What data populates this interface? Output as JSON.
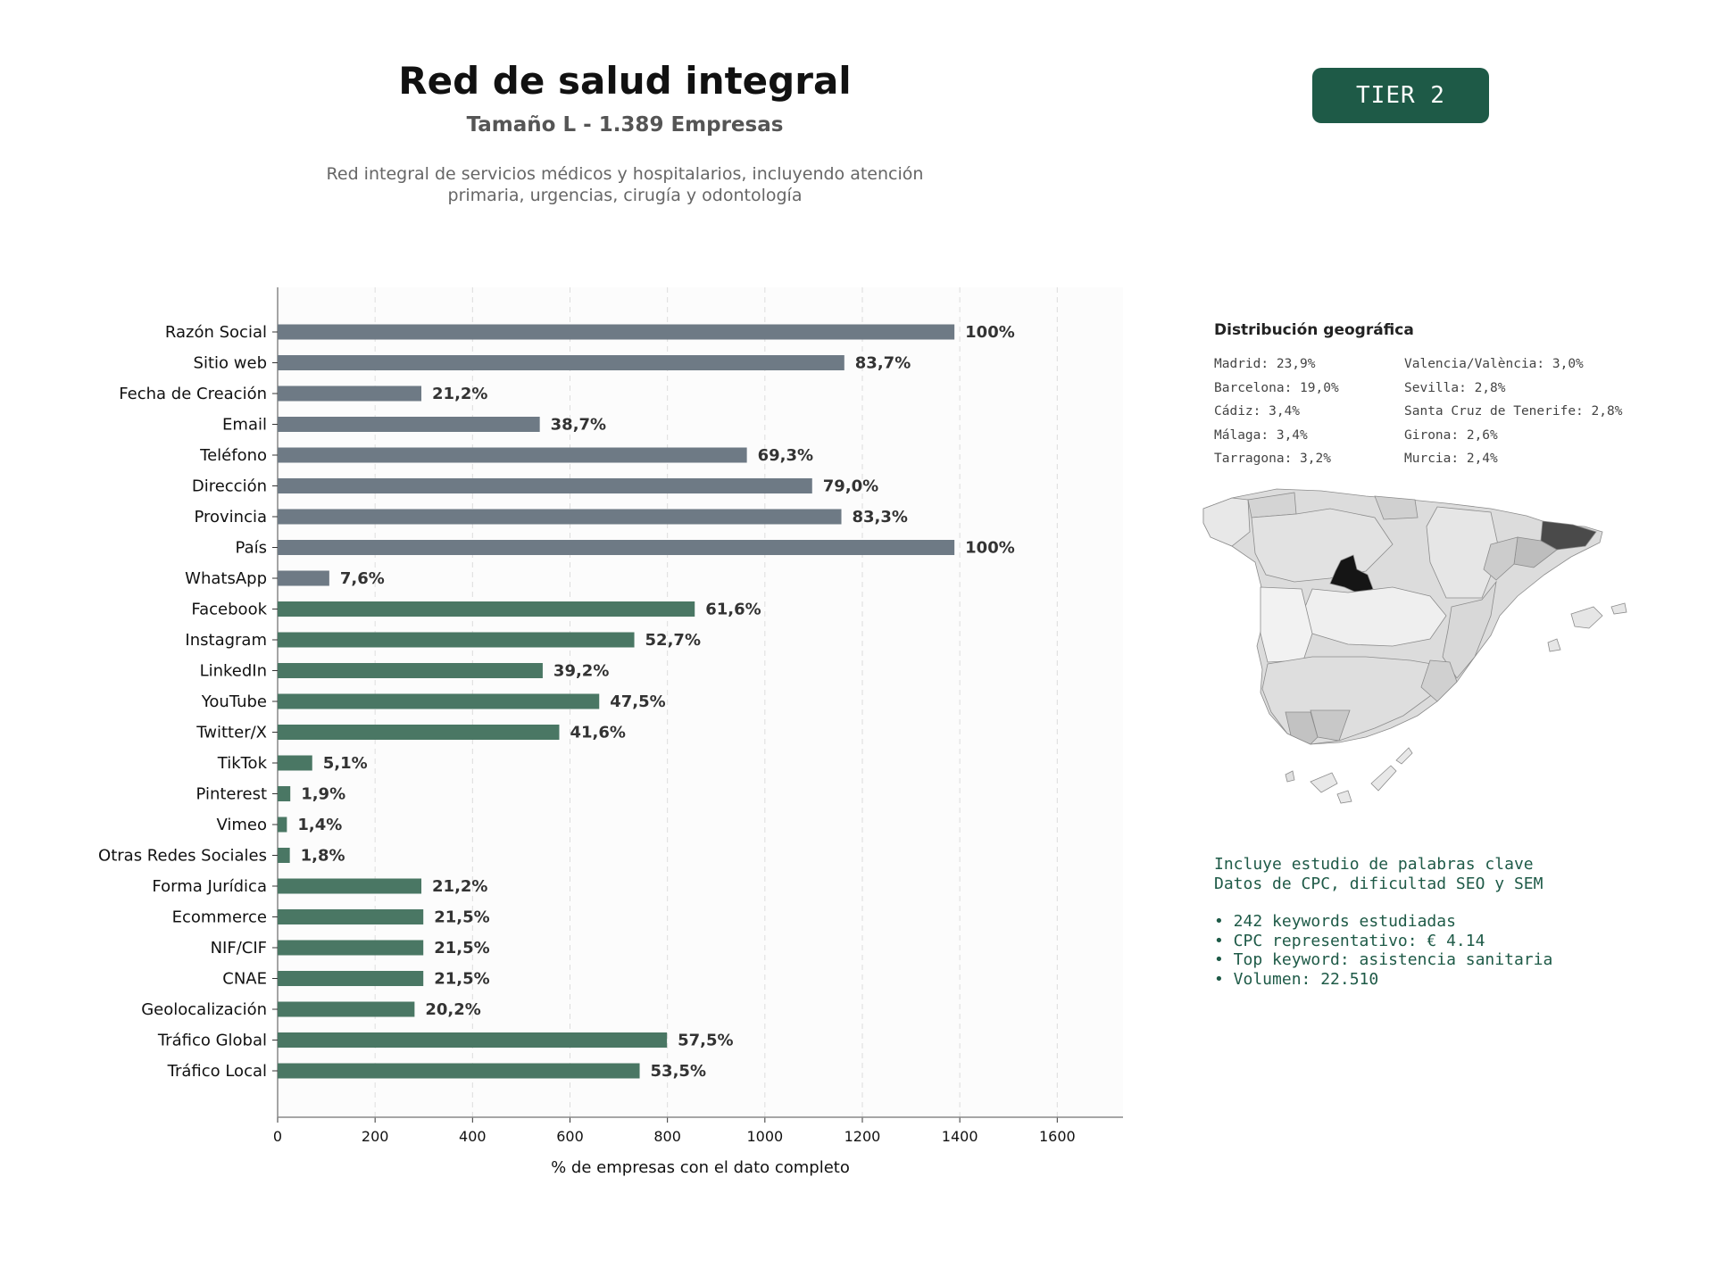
{
  "header": {
    "title": "Red de salud integral",
    "subtitle": "Tamaño L - 1.389 Empresas",
    "description_line1": "Red integral de servicios médicos y hospitalarios, incluyendo atención",
    "description_line2": "primaria, urgencias, cirugía y odontología",
    "tier": "TIER 2"
  },
  "colors": {
    "basic_bar": "#6e7a85",
    "social_bar": "#4a7764",
    "accent": "#1e5a47"
  },
  "chart_data": {
    "type": "bar",
    "orientation": "horizontal",
    "xlabel": "% de empresas con el dato completo",
    "xlim": [
      0,
      1735
    ],
    "xticks": [
      0,
      200,
      400,
      600,
      800,
      1000,
      1200,
      1400,
      1600
    ],
    "grid": true,
    "categories": [
      "Razón Social",
      "Sitio web",
      "Fecha de Creación",
      "Email",
      "Teléfono",
      "Dirección",
      "Provincia",
      "País",
      "WhatsApp",
      "Facebook",
      "Instagram",
      "LinkedIn",
      "YouTube",
      "Twitter/X",
      "TikTok",
      "Pinterest",
      "Vimeo",
      "Otras Redes Sociales",
      "Forma Jurídica",
      "Ecommerce",
      "NIF/CIF",
      "CNAE",
      "Geolocalización",
      "Tráfico Global",
      "Tráfico Local"
    ],
    "values": [
      1389,
      1163,
      295,
      538,
      963,
      1097,
      1157,
      1389,
      106,
      856,
      732,
      544,
      660,
      578,
      71,
      26,
      19,
      25,
      295,
      299,
      299,
      299,
      281,
      799,
      743
    ],
    "labels": [
      "100%",
      "83,7%",
      "21,2%",
      "38,7%",
      "69,3%",
      "79,0%",
      "83,3%",
      "100%",
      "7,6%",
      "61,6%",
      "52,7%",
      "39,2%",
      "47,5%",
      "41,6%",
      "5,1%",
      "1,9%",
      "1,4%",
      "1,8%",
      "21,2%",
      "21,5%",
      "21,5%",
      "21,5%",
      "20,2%",
      "57,5%",
      "53,5%"
    ],
    "group": [
      "basic",
      "basic",
      "basic",
      "basic",
      "basic",
      "basic",
      "basic",
      "basic",
      "basic",
      "social",
      "social",
      "social",
      "social",
      "social",
      "social",
      "social",
      "social",
      "social",
      "social",
      "social",
      "social",
      "social",
      "social",
      "social",
      "social"
    ]
  },
  "geo": {
    "title": "Distribución geográfica",
    "left": [
      "Madrid: 23,9%",
      "Barcelona: 19,0%",
      "Cádiz: 3,4%",
      "Málaga: 3,4%",
      "Tarragona: 3,2%"
    ],
    "right": [
      "Valencia/València: 3,0%",
      "Sevilla: 2,8%",
      "Santa Cruz de Tenerife: 2,8%",
      "Girona: 2,6%",
      "Murcia: 2,4%"
    ]
  },
  "keywords": {
    "line1": "Incluye estudio de palabras clave",
    "line2": "Datos de CPC, dificultad SEO y SEM",
    "bullets": [
      "• 242 keywords estudiadas",
      "• CPC representativo: € 4.14",
      "• Top keyword: asistencia sanitaria",
      "• Volumen: 22.510"
    ]
  }
}
